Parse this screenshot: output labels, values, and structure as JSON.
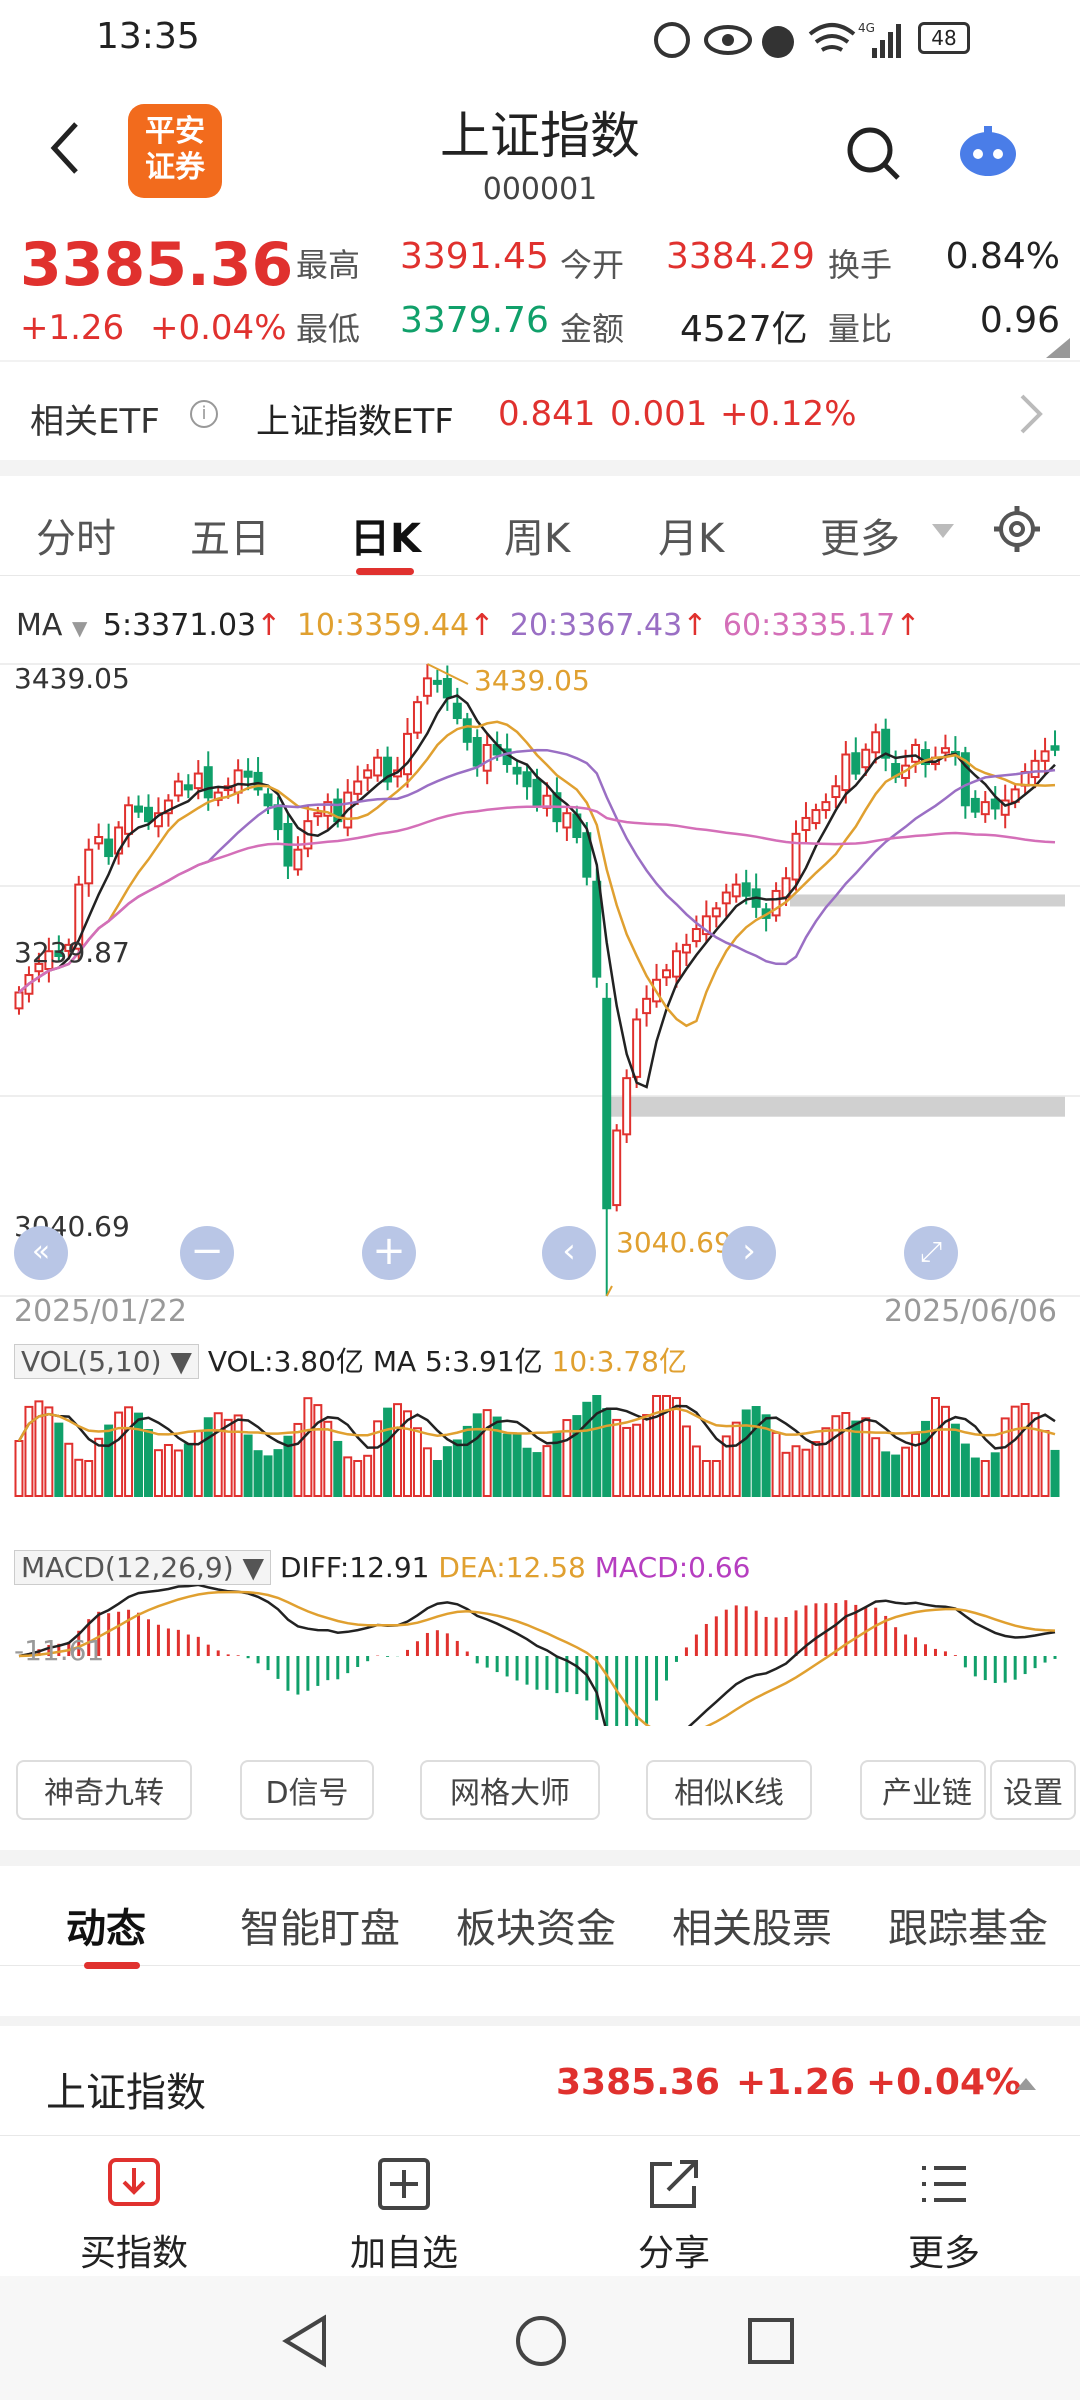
{
  "status": {
    "time": "13:35",
    "battery": "48",
    "net": "4G"
  },
  "header": {
    "title": "上证指数",
    "code": "000001",
    "logo_text": "平安\n证券",
    "logo_line1": "平安",
    "logo_line2": "证券"
  },
  "quote": {
    "price": "3385.36",
    "change": "+1.26",
    "change_pct": "+0.04%",
    "high_label": "最高",
    "high": "3391.45",
    "low_label": "最低",
    "low": "3379.76",
    "open_label": "今开",
    "open": "3384.29",
    "amount_label": "金额",
    "amount": "4527亿",
    "turnover_label": "换手",
    "turnover": "0.84%",
    "volratio_label": "量比",
    "volratio": "0.96"
  },
  "etf": {
    "label": "相关ETF",
    "name": "上证指数ETF",
    "price": "0.841",
    "change": "0.001",
    "pct": "+0.12%"
  },
  "periods": {
    "tabs": [
      "分时",
      "五日",
      "日K",
      "周K",
      "月K",
      "更多"
    ],
    "active": "日K"
  },
  "ma": {
    "label": "MA",
    "ma5": "5:3371.03",
    "ma10": "10:3359.44",
    "ma20": "20:3367.43",
    "ma60": "60:3335.17"
  },
  "axis": {
    "top": "3439.05",
    "mid": "3239.87",
    "bottom": "3040.69",
    "high_marker": "3439.05",
    "low_marker": "3040.69",
    "start_date": "2025/01/22",
    "end_date": "2025/06/06"
  },
  "vol": {
    "label": "VOL(5,10)",
    "vol": "VOL:3.80亿",
    "ma5": "MA 5:3.91亿",
    "ma10": "10:3.78亿"
  },
  "macd": {
    "label": "MACD(12,26,9)",
    "diff": "DIFF:12.91",
    "dea": "DEA:12.58",
    "macd": "MACD:0.66",
    "axis": "-11.61"
  },
  "tools": [
    "神奇九转",
    "D信号",
    "网格大师",
    "相似K线",
    "产业链",
    "设置"
  ],
  "dyn_tabs": [
    "动态",
    "智能盯盘",
    "板块资金",
    "相关股票",
    "跟踪基金"
  ],
  "summary": {
    "name": "上证指数",
    "price": "3385.36",
    "change": "+1.26",
    "pct": "+0.04%"
  },
  "bottombar": [
    {
      "label": "买指数",
      "icon": "buy-icon"
    },
    {
      "label": "加自选",
      "icon": "add-icon"
    },
    {
      "label": "分享",
      "icon": "share-icon"
    },
    {
      "label": "更多",
      "icon": "more-icon"
    }
  ],
  "colors": {
    "up": "#e0312e",
    "down": "#10a06a",
    "ma5": "#222222",
    "ma10": "#e0a030",
    "ma20": "#9a6fc4",
    "ma60": "#d46fb8"
  },
  "chart_data": {
    "type": "candlestick",
    "x_range": [
      "2025/01/22",
      "2025/06/06"
    ],
    "ylim": [
      3040.69,
      3439.05
    ],
    "closes": [
      3232,
      3243,
      3250,
      3258,
      3255,
      3262,
      3300,
      3322,
      3330,
      3318,
      3336,
      3350,
      3346,
      3340,
      3345,
      3353,
      3365,
      3360,
      3370,
      3355,
      3358,
      3362,
      3372,
      3368,
      3360,
      3350,
      3335,
      3312,
      3322,
      3340,
      3345,
      3352,
      3340,
      3358,
      3365,
      3372,
      3380,
      3365,
      3372,
      3395,
      3415,
      3430,
      3428,
      3418,
      3405,
      3390,
      3375,
      3388,
      3382,
      3376,
      3370,
      3362,
      3350,
      3356,
      3340,
      3345,
      3330,
      3305,
      3242,
      3096,
      3145,
      3178,
      3215,
      3228,
      3240,
      3246,
      3258,
      3262,
      3272,
      3280,
      3285,
      3295,
      3300,
      3293,
      3286,
      3279,
      3296,
      3304,
      3332,
      3342,
      3347,
      3352,
      3362,
      3382,
      3370,
      3385,
      3396,
      3380,
      3368,
      3375,
      3388,
      3376,
      3380,
      3386,
      3382,
      3350,
      3346,
      3352,
      3348,
      3353,
      3360,
      3371,
      3378,
      3384,
      3385
    ],
    "legend": [
      "5:3371.03",
      "10:3359.44",
      "20:3367.43",
      "60:3335.17"
    ]
  }
}
